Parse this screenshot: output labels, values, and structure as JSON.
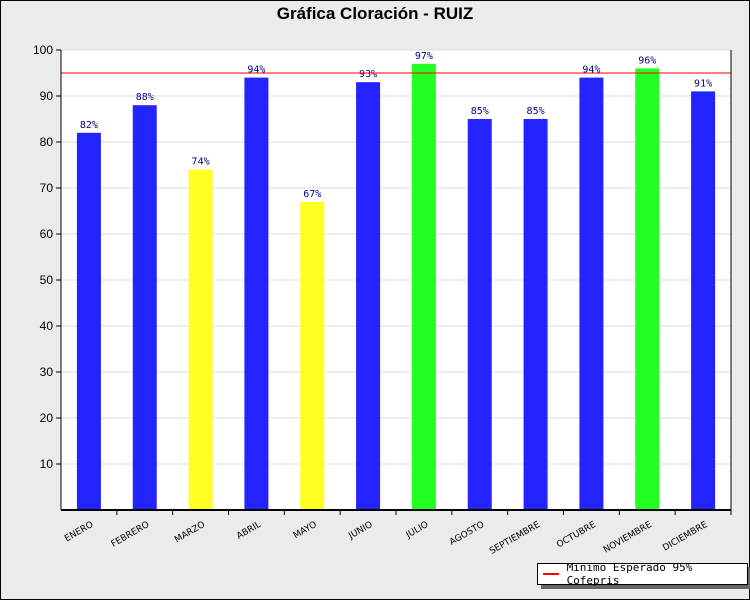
{
  "chart_data": {
    "type": "bar",
    "title": "Gráfica Cloración - RUIZ",
    "categories": [
      "ENERO",
      "FEBRERO",
      "MARZO",
      "ABRIL",
      "MAYO",
      "JUNIO",
      "JULIO",
      "AGOSTO",
      "SEPTIEMBRE",
      "OCTUBRE",
      "NOVIEMBRE",
      "DICIEMBRE"
    ],
    "values": [
      82,
      88,
      74,
      94,
      67,
      93,
      97,
      85,
      85,
      94,
      96,
      91
    ],
    "data_labels": [
      "82%",
      "88%",
      "74%",
      "94%",
      "67%",
      "93%",
      "97%",
      "85%",
      "85%",
      "94%",
      "96%",
      "91%"
    ],
    "bar_colors": [
      "#2323ff",
      "#2323ff",
      "#ffff23",
      "#2323ff",
      "#ffff23",
      "#2323ff",
      "#23ff23",
      "#2323ff",
      "#2323ff",
      "#2323ff",
      "#23ff23",
      "#2323ff"
    ],
    "ylim": [
      0,
      100
    ],
    "yticks": [
      10,
      20,
      30,
      40,
      50,
      60,
      70,
      80,
      90,
      100
    ],
    "reference_line": {
      "value": 95,
      "color": "#ff0000",
      "label": "Minimo Esperado 95% Cofepris"
    },
    "legend_position": "bottom-right",
    "grid": true
  }
}
